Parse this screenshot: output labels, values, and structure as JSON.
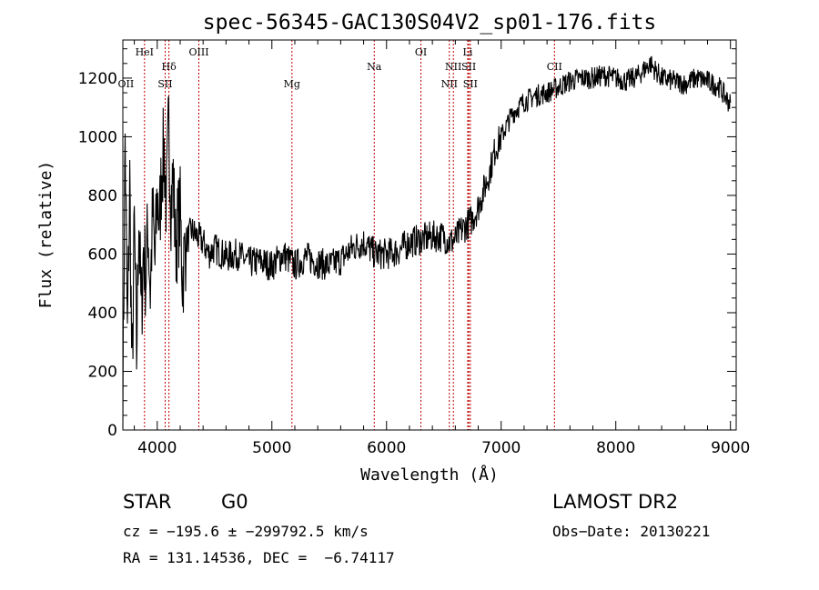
{
  "chart_data": {
    "type": "line",
    "title": "spec-56345-GAC130S04V2_sp01-176.fits",
    "xlabel": "Wavelength (Å)",
    "ylabel": "Flux (relative)",
    "xlim": [
      3700,
      9050
    ],
    "ylim": [
      0,
      1330
    ],
    "x_ticks": [
      4000,
      5000,
      6000,
      7000,
      8000,
      9000
    ],
    "y_ticks": [
      0,
      200,
      400,
      600,
      800,
      1000,
      1200
    ],
    "grid": false,
    "series": [
      {
        "color": "#000000",
        "x": [
          3700,
          3720,
          3740,
          3760,
          3780,
          3800,
          3820,
          3840,
          3860,
          3880,
          3900,
          3920,
          3940,
          3960,
          3980,
          4000,
          4020,
          4040,
          4060,
          4080,
          4100,
          4120,
          4140,
          4160,
          4180,
          4200,
          4220,
          4250,
          4300,
          4350,
          4400,
          4450,
          4500,
          4600,
          4700,
          4800,
          4900,
          5000,
          5100,
          5200,
          5300,
          5400,
          5500,
          5600,
          5700,
          5800,
          5900,
          6000,
          6100,
          6200,
          6300,
          6400,
          6500,
          6550,
          6600,
          6650,
          6700,
          6750,
          6800,
          6850,
          6900,
          6950,
          7000,
          7050,
          7100,
          7200,
          7300,
          7400,
          7500,
          7600,
          7700,
          7800,
          7900,
          8000,
          8100,
          8200,
          8300,
          8400,
          8500,
          8600,
          8700,
          8800,
          8900,
          9000
        ],
        "y": [
          80,
          1000,
          300,
          850,
          150,
          700,
          250,
          750,
          380,
          620,
          520,
          700,
          470,
          740,
          560,
          800,
          700,
          900,
          950,
          760,
          1050,
          780,
          860,
          620,
          700,
          740,
          520,
          640,
          680,
          660,
          640,
          600,
          620,
          590,
          600,
          570,
          575,
          560,
          600,
          560,
          590,
          570,
          560,
          580,
          620,
          640,
          600,
          600,
          610,
          640,
          650,
          660,
          660,
          640,
          650,
          680,
          700,
          720,
          760,
          820,
          880,
          960,
          1000,
          1040,
          1080,
          1120,
          1140,
          1150,
          1170,
          1190,
          1200,
          1200,
          1210,
          1200,
          1190,
          1210,
          1250,
          1200,
          1190,
          1180,
          1200,
          1190,
          1170,
          1110
        ]
      }
    ],
    "line_labels": [
      {
        "text": "HeI",
        "x": 3889,
        "row": 1
      },
      {
        "text": "OIII",
        "x": 4363,
        "row": 1
      },
      {
        "text": "OI",
        "x": 6300,
        "row": 1
      },
      {
        "text": "Li",
        "x": 6708,
        "row": 1
      },
      {
        "text": "Hδ",
        "x": 4102,
        "row": 2
      },
      {
        "text": "Na",
        "x": 5893,
        "row": 2
      },
      {
        "text": "NII",
        "x": 6583,
        "row": 2
      },
      {
        "text": "SII",
        "x": 6717,
        "row": 2
      },
      {
        "text": "CII",
        "x": 7465,
        "row": 2
      },
      {
        "text": "OII",
        "x": 3727,
        "row": 3
      },
      {
        "text": "SII",
        "x": 4069,
        "row": 3
      },
      {
        "text": "Mg",
        "x": 5175,
        "row": 3
      },
      {
        "text": "NII",
        "x": 6548,
        "row": 3
      },
      {
        "text": "SII",
        "x": 6731,
        "row": 3
      }
    ],
    "line_markers": [
      3889,
      4069,
      4102,
      4363,
      5175,
      5893,
      6300,
      6548,
      6583,
      6708,
      6717,
      6731,
      7465
    ]
  },
  "footer": {
    "class_label": "STAR",
    "subclass": "G0",
    "survey": "LAMOST DR2",
    "cz": "cz = −195.6 ± −299792.5 km/s",
    "obs_date": "Obs−Date: 20130221",
    "radec": "RA = 131.14536, DEC =  −6.74117"
  }
}
